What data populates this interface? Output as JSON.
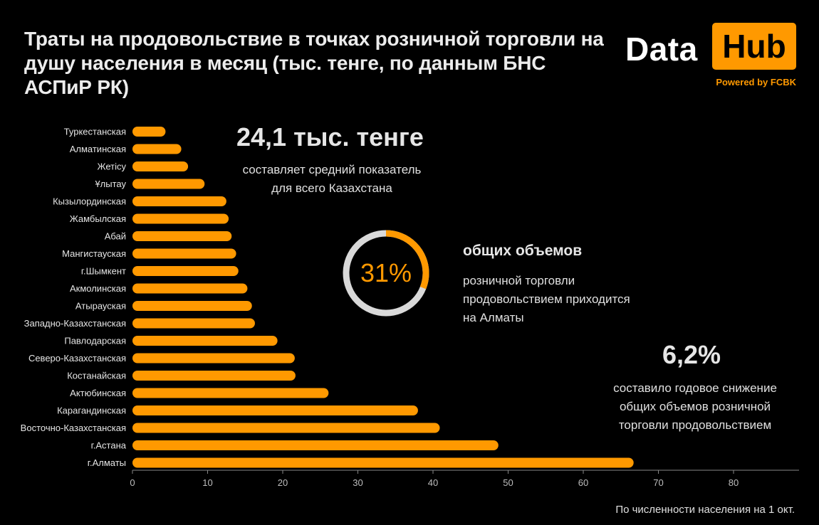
{
  "title": "Траты на продовольствие в точках розничной торговли на душу населения в месяц (тыс. тенге, по данным БНС АСПиР РК)",
  "logo": {
    "word1": "Data",
    "word2": "Hub",
    "powered": "Powered by FCBK"
  },
  "kpi1": {
    "value": "24,1 тыс. тенге",
    "text": "составляет средний показатель\nдля всего Казахстана"
  },
  "kpi2": {
    "percent": "31%",
    "fraction": 0.31,
    "title": "общих объемов",
    "text": "розничной торговли\nпродовольствием приходится\nна Алматы"
  },
  "kpi3": {
    "value": "6,2%",
    "text": "составило годовое снижение\nобщих объемов розничной\nторговли продовольствием"
  },
  "footnote": "По численности населения на 1 окт.",
  "colors": {
    "bar": "#ff9900",
    "background": "#000000",
    "text": "#e6e6e6",
    "ring_track": "#d9d9d9"
  },
  "chart_data": {
    "type": "bar",
    "orientation": "horizontal",
    "categories": [
      "Туркестанская",
      "Алматинская",
      "Жетісу",
      "Ұлытау",
      "Кызылординская",
      "Жамбылская",
      "Абай",
      "Мангистауская",
      "г.Шымкент",
      "Акмолинская",
      "Атырауская",
      "Западно-Казахстанская",
      "Павлодарская",
      "Северо-Казахстанская",
      "Костанайская",
      "Актюбинская",
      "Карагандинская",
      "Восточно-Казахстанская",
      "г.Астана",
      "г.Алматы"
    ],
    "values": [
      4.4,
      6.5,
      7.4,
      9.6,
      12.5,
      12.8,
      13.2,
      13.8,
      14.1,
      15.3,
      15.9,
      16.3,
      19.3,
      21.6,
      21.7,
      26.1,
      38.0,
      40.9,
      48.7,
      66.7
    ],
    "xlim": [
      0,
      90
    ],
    "xticks": [
      "0",
      "10",
      "20",
      "30",
      "40",
      "50",
      "60",
      "70",
      "80"
    ],
    "grid": false
  }
}
